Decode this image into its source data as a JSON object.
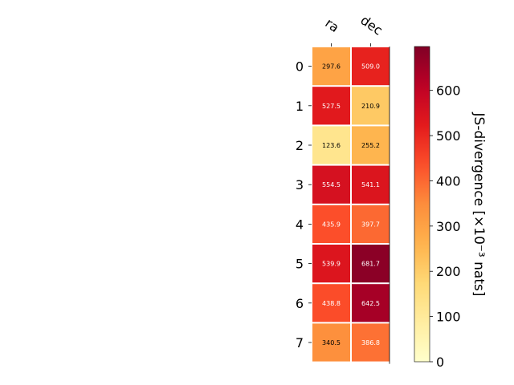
{
  "chart_data": {
    "type": "heatmap",
    "title": "",
    "x_categories": [
      "ra",
      "dec"
    ],
    "y_categories": [
      "0",
      "1",
      "2",
      "3",
      "4",
      "5",
      "6",
      "7"
    ],
    "values": [
      [
        297.6,
        509.0
      ],
      [
        527.5,
        210.9
      ],
      [
        123.6,
        255.2
      ],
      [
        554.5,
        541.1
      ],
      [
        435.9,
        397.7
      ],
      [
        539.9,
        681.7
      ],
      [
        438.8,
        642.5
      ],
      [
        340.5,
        386.8
      ]
    ],
    "value_labels": [
      [
        "297.6",
        "509.0"
      ],
      [
        "527.5",
        "210.9"
      ],
      [
        "123.6",
        "255.2"
      ],
      [
        "554.5",
        "541.1"
      ],
      [
        "435.9",
        "397.7"
      ],
      [
        "539.9",
        "681.7"
      ],
      [
        "438.8",
        "642.5"
      ],
      [
        "340.5",
        "386.8"
      ]
    ],
    "colorbar": {
      "label": "JS-divergence [×10⁻³ nats]",
      "range": [
        0,
        697
      ],
      "ticks": [
        0,
        100,
        200,
        300,
        400,
        500,
        600
      ],
      "tick_labels": [
        "0",
        "100",
        "200",
        "300",
        "400",
        "500",
        "600"
      ],
      "colormap": "YlOrRd"
    },
    "grid": false,
    "legend": "colorbar-right"
  }
}
